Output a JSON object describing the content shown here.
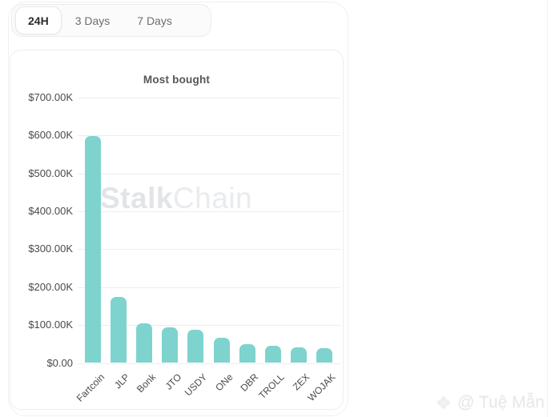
{
  "tabs": {
    "items": [
      {
        "label": "24H",
        "active": true
      },
      {
        "label": "3 Days",
        "active": false
      },
      {
        "label": "7 Days",
        "active": false
      }
    ]
  },
  "chart_data": {
    "type": "bar",
    "title": "Most bought",
    "categories": [
      "Fartcoin",
      "JLP",
      "Bonk",
      "JTO",
      "USDY",
      "ONe",
      "DBR",
      "TROLL",
      "ZEX",
      "WOJAK"
    ],
    "values": [
      598000,
      175000,
      104000,
      93000,
      88000,
      67000,
      50000,
      46000,
      41000,
      39000
    ],
    "y_ticks": {
      "labels": [
        "$700.00K",
        "$600.00K",
        "$500.00K",
        "$400.00K",
        "$300.00K",
        "$200.00K",
        "$100.00K",
        "$0.00"
      ],
      "values": [
        700000,
        600000,
        500000,
        400000,
        300000,
        200000,
        100000,
        0
      ]
    },
    "ylim": [
      0,
      700000
    ],
    "grid": true,
    "legend": "none",
    "bar_color": "#7ed3ce",
    "xlabel": "",
    "ylabel": ""
  },
  "watermark": {
    "brand_bold": "Stalk",
    "brand_light": "Chain",
    "credit_icon": "diamond-icon",
    "credit": "@ Tuệ Mẫn"
  },
  "colors": {
    "bar": "#7ed3ce",
    "gridline": "#ededf0",
    "tick_text": "#4a4a4a",
    "title_text": "#565656",
    "tab_active_text": "#2c2c2c",
    "tab_inactive_text": "#6e6e6e",
    "card_border": "#ededed"
  }
}
